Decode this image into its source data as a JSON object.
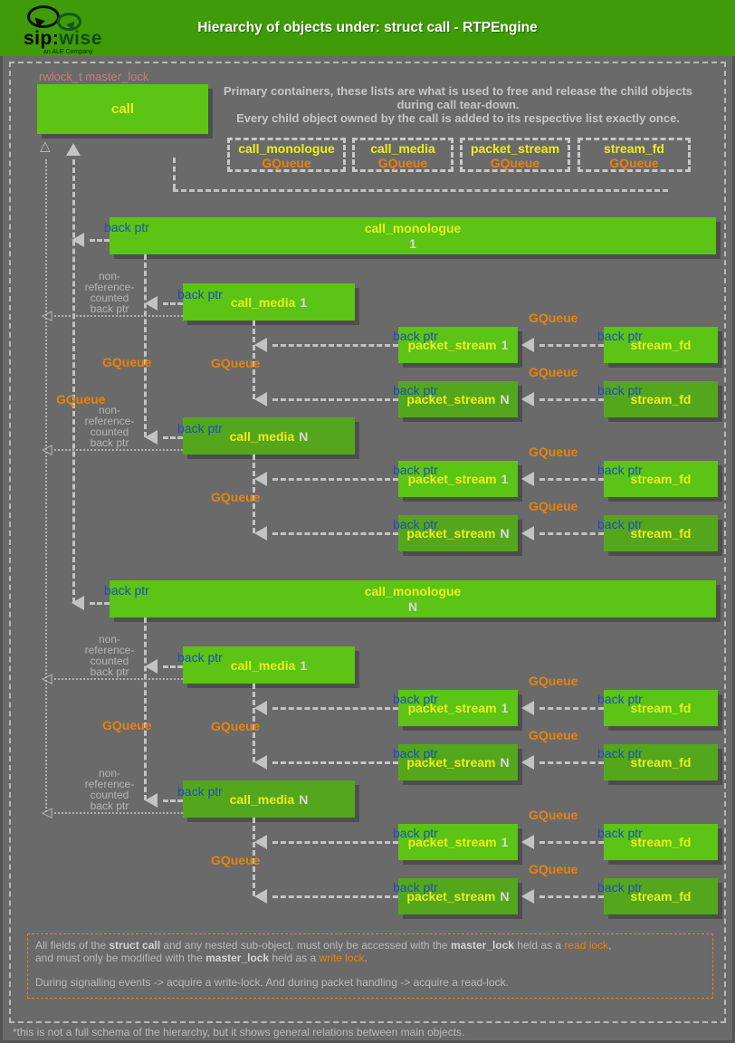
{
  "colors": {
    "green": "#5bc414",
    "green_dark": "#54a71d",
    "header_green": "#3f9b07",
    "yellow": "#eded1f",
    "orange": "#e8820c",
    "blue": "#1d4fb5",
    "salmon": "#cc7a7a",
    "line_gray": "#c3c3c3",
    "background": "#6a6a6a",
    "text_gray": "#c6c6c6"
  },
  "header": {
    "title": "Hierarchy of objects under: struct call - RTPEngine",
    "logo": {
      "part1": "sip:",
      "part2": "wise",
      "tagline": "an ALE Company"
    }
  },
  "intro": {
    "lock_label": "rwlock_t master_lock",
    "call_box": "call",
    "note_lines": [
      "Primary containers, these lists are what is used to free and release the child objects",
      "during call tear-down.",
      "Every child object owned by the call is added to its respective list exactly once."
    ],
    "queue_boxes": [
      {
        "name": "call_monologue",
        "type": "GQueue"
      },
      {
        "name": "call_media",
        "type": "GQueue"
      },
      {
        "name": "packet_stream",
        "type": "GQueue"
      },
      {
        "name": "stream_fd",
        "type": "GQueue"
      }
    ]
  },
  "labels": {
    "back_ptr": "back ptr",
    "gqueue": "GQueue",
    "non_ref_lines": [
      "non-",
      "reference-",
      "counted",
      "back ptr"
    ]
  },
  "hierarchy": {
    "monologues": [
      {
        "name": "call_monologue",
        "suffix": "1",
        "medias": [
          {
            "name": "call_media",
            "suffix": "1",
            "streams": [
              {
                "name": "packet_stream",
                "suffix": "1",
                "fd": "stream_fd"
              },
              {
                "name": "packet_stream",
                "suffix": "N",
                "fd": "stream_fd"
              }
            ]
          },
          {
            "name": "call_media",
            "suffix": "N",
            "streams": [
              {
                "name": "packet_stream",
                "suffix": "1",
                "fd": "stream_fd"
              },
              {
                "name": "packet_stream",
                "suffix": "N",
                "fd": "stream_fd"
              }
            ]
          }
        ]
      },
      {
        "name": "call_monologue",
        "suffix": "N",
        "medias": [
          {
            "name": "call_media",
            "suffix": "1",
            "streams": [
              {
                "name": "packet_stream",
                "suffix": "1",
                "fd": "stream_fd"
              },
              {
                "name": "packet_stream",
                "suffix": "N",
                "fd": "stream_fd"
              }
            ]
          },
          {
            "name": "call_media",
            "suffix": "N",
            "streams": [
              {
                "name": "packet_stream",
                "suffix": "1",
                "fd": "stream_fd"
              },
              {
                "name": "packet_stream",
                "suffix": "N",
                "fd": "stream_fd"
              }
            ]
          }
        ]
      }
    ]
  },
  "footer": {
    "lines": [
      [
        {
          "s": "n",
          "t": "All fields of the "
        },
        {
          "s": "b",
          "t": "struct call"
        },
        {
          "s": "n",
          "t": " and any nested sub-object, must only be accessed with the "
        },
        {
          "s": "b",
          "t": "master_lock"
        },
        {
          "s": "n",
          "t": " held as a "
        },
        {
          "s": "o",
          "t": "read lock"
        },
        {
          "s": "n",
          "t": ","
        }
      ],
      [
        {
          "s": "n",
          "t": "and must only be modified with the "
        },
        {
          "s": "b",
          "t": "master_lock"
        },
        {
          "s": "n",
          "t": " held as a "
        },
        {
          "s": "o",
          "t": "write lock"
        },
        {
          "s": "n",
          "t": "."
        }
      ],
      [],
      [
        {
          "s": "n",
          "t": "During signalling events -> acquire a write-lock. And during packet handling -> acquire a read-lock."
        }
      ]
    ]
  },
  "bottom_note": "*this is not a full schema of the hierarchy, but it shows general relations between main objects."
}
